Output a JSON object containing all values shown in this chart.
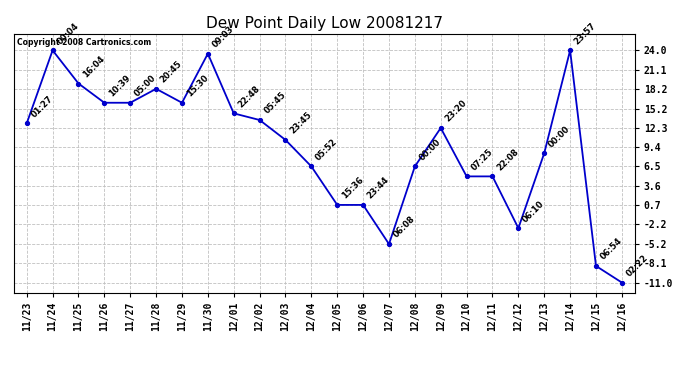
{
  "title": "Dew Point Daily Low 20081217",
  "copyright": "Copyright 2008 Cartronics.com",
  "x_labels": [
    "11/23",
    "11/24",
    "11/25",
    "11/26",
    "11/27",
    "11/28",
    "11/29",
    "11/30",
    "12/01",
    "12/02",
    "12/03",
    "12/04",
    "12/05",
    "12/06",
    "12/07",
    "12/08",
    "12/09",
    "12/10",
    "12/11",
    "12/12",
    "12/13",
    "12/14",
    "12/15",
    "12/16"
  ],
  "y_values": [
    13.0,
    24.0,
    19.0,
    16.1,
    16.1,
    18.2,
    16.1,
    23.5,
    14.5,
    13.5,
    10.5,
    6.5,
    0.7,
    0.7,
    -5.2,
    6.5,
    12.3,
    5.0,
    5.0,
    -2.8,
    8.5,
    24.0,
    -8.5,
    -11.0
  ],
  "point_labels": [
    "01:27",
    "00:04",
    "16:04",
    "10:39",
    "05:00",
    "20:45",
    "15:30",
    "09:03",
    "22:48",
    "05:45",
    "23:45",
    "05:52",
    "15:36",
    "23:44",
    "06:08",
    "00:00",
    "23:20",
    "07:25",
    "22:08",
    "06:10",
    "00:00",
    "23:57",
    "06:54",
    "02:22"
  ],
  "y_ticks": [
    24.0,
    21.1,
    18.2,
    15.2,
    12.3,
    9.4,
    6.5,
    3.6,
    0.7,
    -2.2,
    -5.2,
    -8.1,
    -11.0
  ],
  "ylim": [
    -12.5,
    26.5
  ],
  "xlim": [
    -0.5,
    23.5
  ],
  "line_color": "#0000cc",
  "marker_color": "#0000cc",
  "grid_color": "#c0c0c0",
  "background_color": "#ffffff",
  "title_fontsize": 11,
  "label_fontsize": 6.0,
  "tick_fontsize": 7.0,
  "copyright_fontsize": 5.5
}
